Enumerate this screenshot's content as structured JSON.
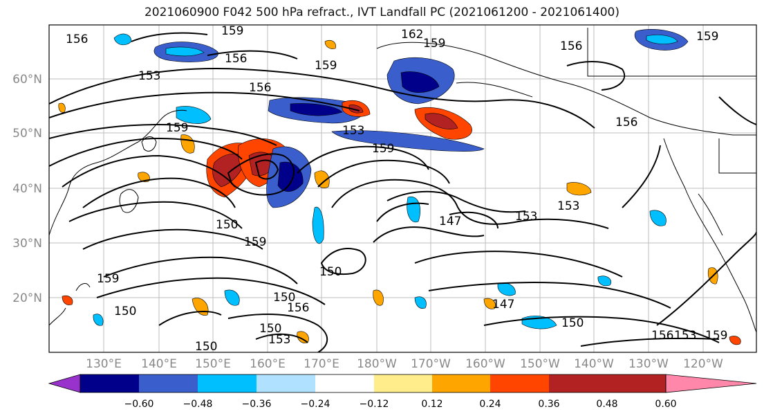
{
  "title": "2021060900 F042 500 hPa refract., IVT Landfall PC (2021061200 - 2021061400)",
  "lat_labels": [
    "60°N",
    "50°N",
    "40°N",
    "30°N",
    "20°N"
  ],
  "lon_labels": [
    "130°E",
    "140°E",
    "150°E",
    "160°E",
    "170°E",
    "180°W",
    "170°W",
    "160°W",
    "150°W",
    "140°W",
    "130°W",
    "120°W"
  ],
  "contour_labels": [
    "156",
    "159",
    "153",
    "162",
    "159",
    "156",
    "156",
    "159",
    "153",
    "159",
    "156",
    "159",
    "156",
    "147",
    "153",
    "150",
    "159",
    "150",
    "153",
    "150",
    "156",
    "159",
    "150",
    "150",
    "147",
    "150",
    "156",
    "153",
    "159",
    "150",
    "153",
    "159"
  ],
  "colorbar": {
    "ticks": [
      "−0.60",
      "−0.48",
      "−0.36",
      "−0.24",
      "−0.12",
      "0.12",
      "0.24",
      "0.36",
      "0.48",
      "0.60"
    ],
    "colors": [
      "#9932CC",
      "#00008B",
      "#3A5FCD",
      "#00BFFF",
      "#B0E2FF",
      "#FFFFFF",
      "#FFEC8B",
      "#FFA500",
      "#FF4500",
      "#B22222",
      "#FF88AA"
    ]
  }
}
